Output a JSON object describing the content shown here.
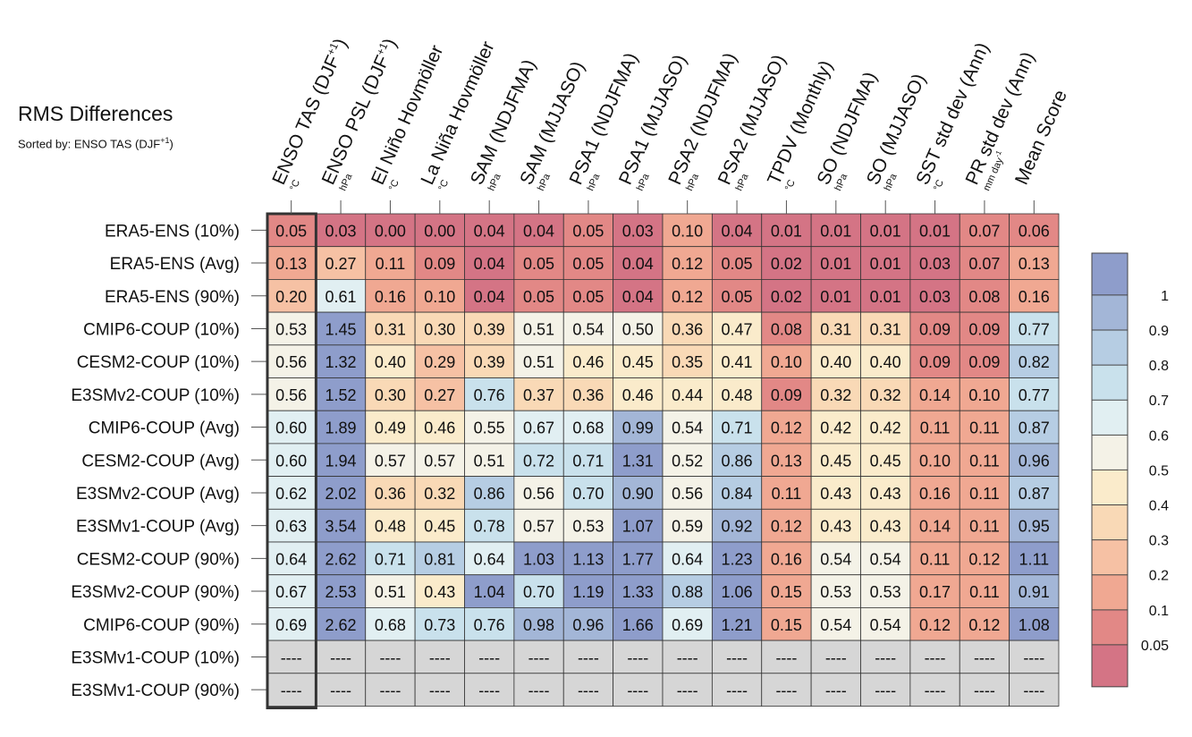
{
  "title": "RMS Differences",
  "sort_label": "Sorted by: ENSO TAS (DJF",
  "sort_sup": "+1",
  "sort_close": ")",
  "missing_text": "----",
  "chart_data": {
    "type": "heatmap",
    "columns": [
      {
        "label": "ENSO TAS (DJF",
        "sup": "+1",
        "close": ")",
        "unit": "°C"
      },
      {
        "label": "ENSO PSL (DJF",
        "sup": "+1",
        "close": ")",
        "unit": "hPa"
      },
      {
        "label": "El Niño Hovmöller",
        "unit": "°C"
      },
      {
        "label": "La Niña Hovmöller",
        "unit": "°C"
      },
      {
        "label": "SAM (NDJFMA)",
        "unit": "hPa"
      },
      {
        "label": "SAM (MJJASO)",
        "unit": "hPa"
      },
      {
        "label": "PSA1 (NDJFMA)",
        "unit": "hPa"
      },
      {
        "label": "PSA1 (MJJASO)",
        "unit": "hPa"
      },
      {
        "label": "PSA2 (NDJFMA)",
        "unit": "hPa"
      },
      {
        "label": "PSA2 (MJJASO)",
        "unit": "hPa"
      },
      {
        "label": "TPDV (Monthly)",
        "unit": "°C"
      },
      {
        "label": "SO (NDJFMA)",
        "unit": "hPa"
      },
      {
        "label": "SO (MJJASO)",
        "unit": "hPa"
      },
      {
        "label": "SST std dev (Ann)",
        "unit": "°C"
      },
      {
        "label": "PR std dev (Ann)",
        "unit": "mm day",
        "unit_sup": "-1"
      },
      {
        "label": "Mean Score",
        "unit": ""
      }
    ],
    "rows": [
      {
        "name": "ERA5-ENS (10%)",
        "values": [
          "0.05",
          "0.03",
          "0.00",
          "0.00",
          "0.04",
          "0.04",
          "0.05",
          "0.03",
          "0.10",
          "0.04",
          "0.01",
          "0.01",
          "0.01",
          "0.01",
          "0.07",
          "0.06"
        ]
      },
      {
        "name": "ERA5-ENS (Avg)",
        "values": [
          "0.13",
          "0.27",
          "0.11",
          "0.09",
          "0.04",
          "0.05",
          "0.05",
          "0.04",
          "0.12",
          "0.05",
          "0.02",
          "0.01",
          "0.01",
          "0.03",
          "0.07",
          "0.13"
        ]
      },
      {
        "name": "ERA5-ENS (90%)",
        "values": [
          "0.20",
          "0.61",
          "0.16",
          "0.10",
          "0.04",
          "0.05",
          "0.05",
          "0.04",
          "0.12",
          "0.05",
          "0.02",
          "0.01",
          "0.01",
          "0.03",
          "0.08",
          "0.16"
        ]
      },
      {
        "name": "CMIP6-COUP (10%)",
        "values": [
          "0.53",
          "1.45",
          "0.31",
          "0.30",
          "0.39",
          "0.51",
          "0.54",
          "0.50",
          "0.36",
          "0.47",
          "0.08",
          "0.31",
          "0.31",
          "0.09",
          "0.09",
          "0.77"
        ]
      },
      {
        "name": "CESM2-COUP (10%)",
        "values": [
          "0.56",
          "1.32",
          "0.40",
          "0.29",
          "0.39",
          "0.51",
          "0.46",
          "0.45",
          "0.35",
          "0.41",
          "0.10",
          "0.40",
          "0.40",
          "0.09",
          "0.09",
          "0.82"
        ]
      },
      {
        "name": "E3SMv2-COUP (10%)",
        "values": [
          "0.56",
          "1.52",
          "0.30",
          "0.27",
          "0.76",
          "0.37",
          "0.36",
          "0.46",
          "0.44",
          "0.48",
          "0.09",
          "0.32",
          "0.32",
          "0.14",
          "0.10",
          "0.77"
        ]
      },
      {
        "name": "CMIP6-COUP (Avg)",
        "values": [
          "0.60",
          "1.89",
          "0.49",
          "0.46",
          "0.55",
          "0.67",
          "0.68",
          "0.99",
          "0.54",
          "0.71",
          "0.12",
          "0.42",
          "0.42",
          "0.11",
          "0.11",
          "0.87"
        ]
      },
      {
        "name": "CESM2-COUP (Avg)",
        "values": [
          "0.60",
          "1.94",
          "0.57",
          "0.57",
          "0.51",
          "0.72",
          "0.71",
          "1.31",
          "0.52",
          "0.86",
          "0.13",
          "0.45",
          "0.45",
          "0.10",
          "0.11",
          "0.96"
        ]
      },
      {
        "name": "E3SMv2-COUP (Avg)",
        "values": [
          "0.62",
          "2.02",
          "0.36",
          "0.32",
          "0.86",
          "0.56",
          "0.70",
          "0.90",
          "0.56",
          "0.84",
          "0.11",
          "0.43",
          "0.43",
          "0.16",
          "0.11",
          "0.87"
        ]
      },
      {
        "name": "E3SMv1-COUP (Avg)",
        "values": [
          "0.63",
          "3.54",
          "0.48",
          "0.45",
          "0.78",
          "0.57",
          "0.53",
          "1.07",
          "0.59",
          "0.92",
          "0.12",
          "0.43",
          "0.43",
          "0.14",
          "0.11",
          "0.95"
        ]
      },
      {
        "name": "CESM2-COUP (90%)",
        "values": [
          "0.64",
          "2.62",
          "0.71",
          "0.81",
          "0.64",
          "1.03",
          "1.13",
          "1.77",
          "0.64",
          "1.23",
          "0.16",
          "0.54",
          "0.54",
          "0.11",
          "0.12",
          "1.11"
        ]
      },
      {
        "name": "E3SMv2-COUP (90%)",
        "values": [
          "0.67",
          "2.53",
          "0.51",
          "0.43",
          "1.04",
          "0.70",
          "1.19",
          "1.33",
          "0.88",
          "1.06",
          "0.15",
          "0.53",
          "0.53",
          "0.17",
          "0.11",
          "0.91"
        ]
      },
      {
        "name": "CMIP6-COUP (90%)",
        "values": [
          "0.69",
          "2.62",
          "0.68",
          "0.73",
          "0.76",
          "0.98",
          "0.96",
          "1.66",
          "0.69",
          "1.21",
          "0.15",
          "0.54",
          "0.54",
          "0.12",
          "0.12",
          "1.08"
        ]
      },
      {
        "name": "E3SMv1-COUP (10%)",
        "values": [
          "----",
          "----",
          "----",
          "----",
          "----",
          "----",
          "----",
          "----",
          "----",
          "----",
          "----",
          "----",
          "----",
          "----",
          "----",
          "----"
        ]
      },
      {
        "name": "E3SMv1-COUP (90%)",
        "values": [
          "----",
          "----",
          "----",
          "----",
          "----",
          "----",
          "----",
          "----",
          "----",
          "----",
          "----",
          "----",
          "----",
          "----",
          "----",
          "----"
        ]
      }
    ],
    "highlight_column": "ENSO TAS (DJF+1)",
    "missing_color": "#d6d6d6",
    "colorbar": {
      "labels": [
        "1",
        "0.9",
        "0.8",
        "0.7",
        "0.6",
        "0.5",
        "0.4",
        "0.3",
        "0.2",
        "0.1",
        "0.05"
      ],
      "bins": [
        {
          "min": 1.0,
          "max": null,
          "color": "#8e9dcb"
        },
        {
          "min": 0.9,
          "max": 1.0,
          "color": "#a3b6d7"
        },
        {
          "min": 0.8,
          "max": 0.9,
          "color": "#b6cde3"
        },
        {
          "min": 0.7,
          "max": 0.8,
          "color": "#c9e1ec"
        },
        {
          "min": 0.6,
          "max": 0.7,
          "color": "#e1eff2"
        },
        {
          "min": 0.5,
          "max": 0.6,
          "color": "#f4f2e7"
        },
        {
          "min": 0.4,
          "max": 0.5,
          "color": "#faebcb"
        },
        {
          "min": 0.3,
          "max": 0.4,
          "color": "#f9d9b6"
        },
        {
          "min": 0.2,
          "max": 0.3,
          "color": "#f6c1a4"
        },
        {
          "min": 0.1,
          "max": 0.2,
          "color": "#f0a892"
        },
        {
          "min": 0.05,
          "max": 0.1,
          "color": "#e28886"
        },
        {
          "min": null,
          "max": 0.05,
          "color": "#d47485"
        }
      ]
    }
  }
}
